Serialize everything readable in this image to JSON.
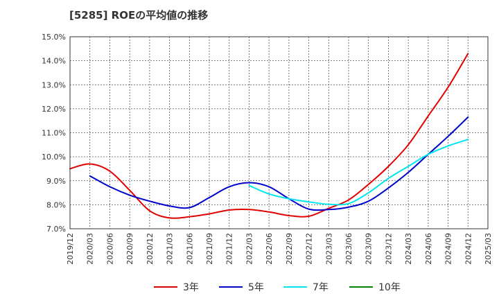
{
  "chart_data": {
    "type": "line",
    "title": "[5285]  ROEの平均値の推移",
    "xlabel": "",
    "ylabel": "",
    "ylim": [
      7.0,
      15.0
    ],
    "yticks": [
      7.0,
      8.0,
      9.0,
      10.0,
      11.0,
      12.0,
      13.0,
      14.0,
      15.0
    ],
    "ytick_labels": [
      "7.0%",
      "8.0%",
      "9.0%",
      "10.0%",
      "11.0%",
      "12.0%",
      "13.0%",
      "14.0%",
      "15.0%"
    ],
    "x_labels": [
      "2019/12",
      "2020/03",
      "2020/06",
      "2020/09",
      "2020/12",
      "2021/03",
      "2021/06",
      "2021/09",
      "2021/12",
      "2022/03",
      "2022/06",
      "2022/09",
      "2022/12",
      "2023/03",
      "2023/06",
      "2023/09",
      "2023/12",
      "2024/03",
      "2024/06",
      "2024/09",
      "2024/12",
      "2025/03"
    ],
    "grid": true,
    "legend_position": "bottom",
    "series": [
      {
        "name": "3年",
        "color": "#e00000",
        "start_index": 0,
        "values": [
          9.5,
          9.7,
          9.4,
          8.6,
          7.75,
          7.45,
          7.5,
          7.62,
          7.78,
          7.8,
          7.7,
          7.55,
          7.52,
          7.85,
          8.2,
          8.85,
          9.6,
          10.5,
          11.7,
          12.9,
          14.3
        ]
      },
      {
        "name": "5年",
        "color": "#0000cc",
        "start_index": 1,
        "values": [
          9.2,
          8.75,
          8.4,
          8.15,
          7.95,
          7.88,
          8.3,
          8.75,
          8.92,
          8.75,
          8.25,
          7.82,
          7.8,
          7.9,
          8.15,
          8.7,
          9.35,
          10.1,
          10.85,
          11.65
        ]
      },
      {
        "name": "7年",
        "color": "#00e5ee",
        "start_index": 9,
        "values": [
          8.8,
          8.45,
          8.25,
          8.12,
          8.02,
          8.05,
          8.5,
          9.1,
          9.6,
          10.1,
          10.45,
          10.72
        ]
      },
      {
        "name": "10年",
        "color": "#008000",
        "start_index": 0,
        "values": []
      }
    ]
  }
}
